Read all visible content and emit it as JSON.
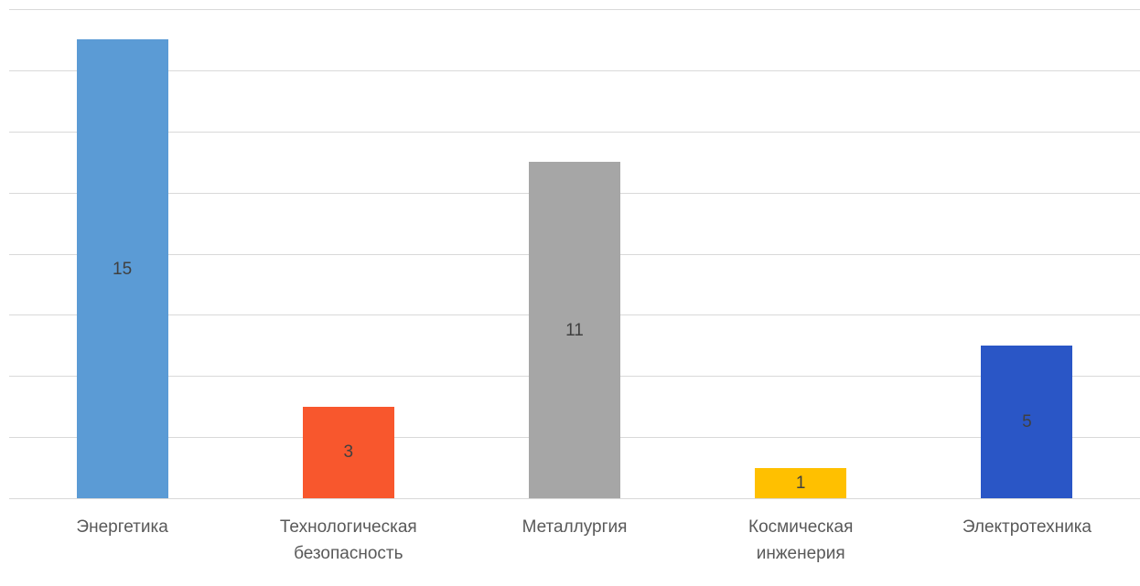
{
  "chart_data": {
    "type": "bar",
    "title": "",
    "xlabel": "",
    "ylabel": "",
    "categories": [
      "Энергетика",
      "Технологическая безопасность",
      "Металлургия",
      "Космическая инженерия",
      "Электротехника"
    ],
    "values": [
      15,
      3,
      11,
      1,
      5
    ],
    "data_labels": [
      "15",
      "3",
      "11",
      "1",
      "5"
    ],
    "bar_colors": [
      "#5B9BD5",
      "#F8572D",
      "#A6A6A6",
      "#FFC000",
      "#2A56C6"
    ],
    "ylim": [
      0,
      16
    ],
    "grid_step": 2,
    "grid": true,
    "legend": false,
    "gridline_color": "#D9D9D9",
    "data_label_color": "#404040",
    "category_label_color": "#595959",
    "background_color": "#FFFFFF"
  }
}
